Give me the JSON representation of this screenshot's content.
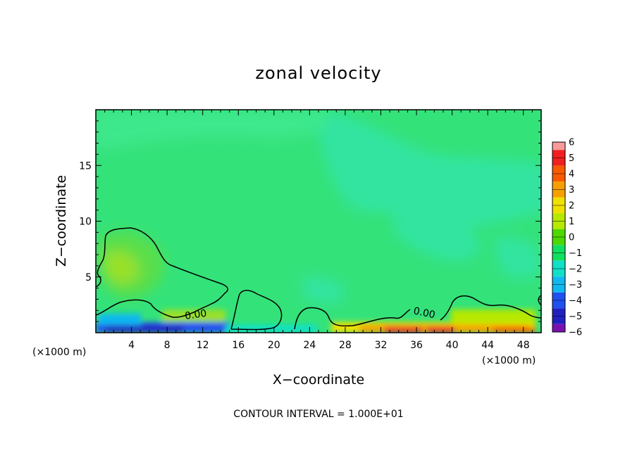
{
  "chart_data": {
    "type": "heatmap",
    "title": "zonal velocity",
    "xlabel": "X−coordinate",
    "ylabel": "Z−coordinate",
    "x_unit": "(×1000 m)",
    "z_unit": "(×1000 m)",
    "xlim": [
      0,
      50
    ],
    "ylim": [
      0,
      20
    ],
    "x_ticks": [
      4,
      8,
      12,
      16,
      20,
      24,
      28,
      32,
      36,
      40,
      44,
      48
    ],
    "y_ticks": [
      5,
      10,
      15
    ],
    "colorbar": {
      "levels": [
        6,
        5,
        4,
        3,
        2,
        1,
        0,
        -1,
        -2,
        -3,
        -4,
        -5,
        -6
      ],
      "labels": [
        "6",
        "5",
        "4",
        "3",
        "2",
        "1",
        "0",
        "−1",
        "−2",
        "−3",
        "−4",
        "−5",
        "−6"
      ],
      "colors": [
        "#f79a9a",
        "#f02020",
        "#f85a00",
        "#f6a000",
        "#f0e000",
        "#b6e800",
        "#4cd800",
        "#10e060",
        "#10e0c8",
        "#10b8f0",
        "#2050f0",
        "#2020c0",
        "#7a10b0"
      ]
    },
    "contour_labels": [
      "0.00",
      "0.00"
    ],
    "note": "CONTOUR INTERVAL = 1.000E+01",
    "colors": {
      "background": "#34e27a",
      "upper_field": "#30e4a0"
    }
  }
}
